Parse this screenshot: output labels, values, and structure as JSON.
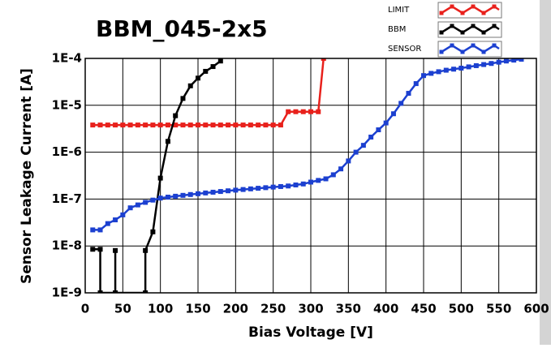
{
  "chart_data": {
    "type": "line",
    "title": "BBM_045-2x5",
    "xlabel": "Bias Voltage [V]",
    "ylabel": "Sensor Leakage Current [A]",
    "xlim": [
      0,
      600
    ],
    "xticks": [
      0,
      50,
      100,
      150,
      200,
      250,
      300,
      350,
      400,
      450,
      500,
      550,
      600
    ],
    "ylim": [
      1e-09,
      0.0001
    ],
    "log_y": true,
    "grid": true,
    "legend": "top-right",
    "yticks": [
      {
        "value": 1e-09,
        "label": "1E-9"
      },
      {
        "value": 1e-08,
        "label": "1E-8"
      },
      {
        "value": 1e-07,
        "label": "1E-7"
      },
      {
        "value": 1e-06,
        "label": "1E-6"
      },
      {
        "value": 1e-05,
        "label": "1E-5"
      },
      {
        "value": 0.0001,
        "label": "1E-4"
      }
    ],
    "series": [
      {
        "name": "LIMIT",
        "color": "#e8211c",
        "x": [
          10,
          20,
          30,
          40,
          50,
          60,
          70,
          80,
          90,
          100,
          110,
          120,
          130,
          140,
          150,
          160,
          170,
          180,
          190,
          200,
          210,
          220,
          230,
          240,
          250,
          260,
          270,
          280,
          290,
          300,
          310,
          317
        ],
        "values": [
          3.8e-06,
          3.8e-06,
          3.8e-06,
          3.8e-06,
          3.8e-06,
          3.8e-06,
          3.8e-06,
          3.8e-06,
          3.8e-06,
          3.8e-06,
          3.8e-06,
          3.8e-06,
          3.8e-06,
          3.8e-06,
          3.8e-06,
          3.8e-06,
          3.8e-06,
          3.8e-06,
          3.8e-06,
          3.8e-06,
          3.8e-06,
          3.8e-06,
          3.8e-06,
          3.8e-06,
          3.8e-06,
          3.8e-06,
          7.3e-06,
          7.3e-06,
          7.3e-06,
          7.3e-06,
          7.3e-06,
          0.0001
        ]
      },
      {
        "name": "BBM",
        "color": "#000000",
        "x": [
          10,
          20,
          20,
          40,
          40,
          40,
          80,
          80,
          90,
          100,
          110,
          120,
          130,
          140,
          150,
          160,
          170,
          180
        ],
        "values": [
          8.5e-09,
          8.5e-09,
          1e-09,
          1e-09,
          8e-09,
          1e-09,
          1e-09,
          8e-09,
          2e-08,
          2.8e-07,
          1.7e-06,
          6e-06,
          1.4e-05,
          2.6e-05,
          3.8e-05,
          5.3e-05,
          6.7e-05,
          8.8e-05
        ]
      },
      {
        "name": "SENSOR",
        "color": "#1c40d0",
        "x": [
          10,
          20,
          30,
          40,
          50,
          60,
          70,
          80,
          90,
          100,
          110,
          120,
          130,
          140,
          150,
          160,
          170,
          180,
          190,
          200,
          210,
          220,
          230,
          240,
          250,
          260,
          270,
          280,
          290,
          300,
          310,
          320,
          330,
          340,
          350,
          360,
          370,
          380,
          390,
          400,
          410,
          420,
          430,
          440,
          450,
          460,
          470,
          480,
          490,
          500,
          510,
          520,
          530,
          540,
          550,
          560,
          570,
          580
        ],
        "values": [
          2.2e-08,
          2.2e-08,
          3e-08,
          3.6e-08,
          4.6e-08,
          6.5e-08,
          7.5e-08,
          8.5e-08,
          9.5e-08,
          1.05e-07,
          1.1e-07,
          1.15e-07,
          1.2e-07,
          1.25e-07,
          1.3e-07,
          1.35e-07,
          1.4e-07,
          1.45e-07,
          1.5e-07,
          1.55e-07,
          1.6e-07,
          1.65e-07,
          1.7e-07,
          1.75e-07,
          1.8e-07,
          1.85e-07,
          1.9e-07,
          2e-07,
          2.1e-07,
          2.3e-07,
          2.5e-07,
          2.7e-07,
          3.3e-07,
          4.4e-07,
          6.5e-07,
          1e-06,
          1.4e-06,
          2.1e-06,
          3e-06,
          4.2e-06,
          6.6e-06,
          1.1e-05,
          1.8e-05,
          2.9e-05,
          4.3e-05,
          4.8e-05,
          5.2e-05,
          5.6e-05,
          5.9e-05,
          6.2e-05,
          6.6e-05,
          7e-05,
          7.4e-05,
          7.8e-05,
          8.3e-05,
          8.8e-05,
          9.2e-05,
          9.6e-05
        ]
      }
    ]
  }
}
